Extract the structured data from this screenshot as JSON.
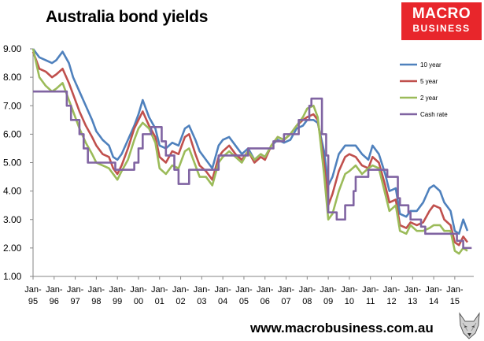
{
  "header": {
    "title": "Australia bond yields"
  },
  "logo": {
    "line1": "MACRO",
    "line2": "BUSINESS",
    "color": "#e8262b"
  },
  "footer": {
    "url": "www.macrobusiness.com.au",
    "icon": "wolf-icon"
  },
  "chart_data": {
    "type": "line",
    "title": "Australia bond yields",
    "xlabel": "",
    "ylabel": "",
    "ylim": [
      1.0,
      9.0
    ],
    "xlim": [
      1995.0,
      2015.9
    ],
    "yticks": [
      "1.00",
      "2.00",
      "3.00",
      "4.00",
      "5.00",
      "6.00",
      "7.00",
      "8.00",
      "9.00"
    ],
    "xticks": [
      {
        "top": "Jan-",
        "bottom": "95",
        "x": 1995
      },
      {
        "top": "Jan-",
        "bottom": "96",
        "x": 1996
      },
      {
        "top": "Jan-",
        "bottom": "97",
        "x": 1997
      },
      {
        "top": "Jan-",
        "bottom": "98",
        "x": 1998
      },
      {
        "top": "Jan-",
        "bottom": "99",
        "x": 1999
      },
      {
        "top": "Jan-",
        "bottom": "00",
        "x": 2000
      },
      {
        "top": "Jan-",
        "bottom": "01",
        "x": 2001
      },
      {
        "top": "Jan-",
        "bottom": "02",
        "x": 2002
      },
      {
        "top": "Jan-",
        "bottom": "03",
        "x": 2003
      },
      {
        "top": "Jan-",
        "bottom": "04",
        "x": 2004
      },
      {
        "top": "Jan-",
        "bottom": "05",
        "x": 2005
      },
      {
        "top": "Jan-",
        "bottom": "06",
        "x": 2006
      },
      {
        "top": "Jan-",
        "bottom": "07",
        "x": 2007
      },
      {
        "top": "Jan-",
        "bottom": "08",
        "x": 2008
      },
      {
        "top": "Jan-",
        "bottom": "09",
        "x": 2009
      },
      {
        "top": "Jan-",
        "bottom": "10",
        "x": 2010
      },
      {
        "top": "Jan-",
        "bottom": "11",
        "x": 2011
      },
      {
        "top": "Jan-",
        "bottom": "12",
        "x": 2012
      },
      {
        "top": "Jan-",
        "bottom": "13",
        "x": 2013
      },
      {
        "top": "Jan-",
        "bottom": "14",
        "x": 2014
      },
      {
        "top": "Jan-",
        "bottom": "15",
        "x": 2015
      }
    ],
    "grid": false,
    "legend": "top-right",
    "series": [
      {
        "name": "10 year",
        "color": "#4f81bd",
        "step": false,
        "points": [
          [
            1995.0,
            9.0
          ],
          [
            1995.3,
            8.7
          ],
          [
            1995.6,
            8.6
          ],
          [
            1995.9,
            8.5
          ],
          [
            1996.1,
            8.6
          ],
          [
            1996.4,
            8.9
          ],
          [
            1996.7,
            8.5
          ],
          [
            1996.9,
            8.0
          ],
          [
            1997.2,
            7.5
          ],
          [
            1997.5,
            7.0
          ],
          [
            1997.8,
            6.5
          ],
          [
            1998.0,
            6.1
          ],
          [
            1998.3,
            5.8
          ],
          [
            1998.6,
            5.6
          ],
          [
            1998.8,
            5.2
          ],
          [
            1999.0,
            5.1
          ],
          [
            1999.2,
            5.3
          ],
          [
            1999.5,
            5.8
          ],
          [
            1999.8,
            6.3
          ],
          [
            2000.0,
            6.7
          ],
          [
            2000.2,
            7.2
          ],
          [
            2000.5,
            6.6
          ],
          [
            2000.8,
            6.2
          ],
          [
            2001.0,
            5.6
          ],
          [
            2001.3,
            5.5
          ],
          [
            2001.6,
            5.7
          ],
          [
            2001.9,
            5.6
          ],
          [
            2002.2,
            6.2
          ],
          [
            2002.4,
            6.3
          ],
          [
            2002.7,
            5.8
          ],
          [
            2002.9,
            5.4
          ],
          [
            2003.2,
            5.1
          ],
          [
            2003.5,
            4.8
          ],
          [
            2003.8,
            5.6
          ],
          [
            2004.0,
            5.8
          ],
          [
            2004.3,
            5.9
          ],
          [
            2004.6,
            5.6
          ],
          [
            2004.9,
            5.3
          ],
          [
            2005.2,
            5.5
          ],
          [
            2005.5,
            5.1
          ],
          [
            2005.8,
            5.3
          ],
          [
            2006.0,
            5.2
          ],
          [
            2006.3,
            5.6
          ],
          [
            2006.6,
            5.8
          ],
          [
            2006.9,
            5.7
          ],
          [
            2007.2,
            5.8
          ],
          [
            2007.5,
            6.2
          ],
          [
            2007.8,
            6.3
          ],
          [
            2008.0,
            6.5
          ],
          [
            2008.3,
            6.5
          ],
          [
            2008.5,
            6.4
          ],
          [
            2008.8,
            5.4
          ],
          [
            2009.0,
            4.2
          ],
          [
            2009.2,
            4.5
          ],
          [
            2009.5,
            5.3
          ],
          [
            2009.8,
            5.6
          ],
          [
            2010.0,
            5.6
          ],
          [
            2010.3,
            5.6
          ],
          [
            2010.6,
            5.3
          ],
          [
            2010.9,
            5.1
          ],
          [
            2011.1,
            5.6
          ],
          [
            2011.4,
            5.3
          ],
          [
            2011.7,
            4.6
          ],
          [
            2011.9,
            4.0
          ],
          [
            2012.2,
            4.1
          ],
          [
            2012.4,
            3.2
          ],
          [
            2012.7,
            3.1
          ],
          [
            2012.9,
            3.3
          ],
          [
            2013.2,
            3.3
          ],
          [
            2013.5,
            3.6
          ],
          [
            2013.8,
            4.1
          ],
          [
            2014.0,
            4.2
          ],
          [
            2014.3,
            4.0
          ],
          [
            2014.5,
            3.6
          ],
          [
            2014.8,
            3.3
          ],
          [
            2015.0,
            2.6
          ],
          [
            2015.2,
            2.5
          ],
          [
            2015.4,
            3.0
          ],
          [
            2015.6,
            2.6
          ]
        ]
      },
      {
        "name": "5 year",
        "color": "#c0504d",
        "step": false,
        "points": [
          [
            1995.0,
            8.9
          ],
          [
            1995.3,
            8.3
          ],
          [
            1995.6,
            8.2
          ],
          [
            1995.9,
            8.0
          ],
          [
            1996.1,
            8.1
          ],
          [
            1996.4,
            8.3
          ],
          [
            1996.7,
            7.8
          ],
          [
            1996.9,
            7.4
          ],
          [
            1997.2,
            6.8
          ],
          [
            1997.5,
            6.3
          ],
          [
            1997.8,
            5.9
          ],
          [
            1998.0,
            5.6
          ],
          [
            1998.3,
            5.3
          ],
          [
            1998.6,
            5.2
          ],
          [
            1998.8,
            4.8
          ],
          [
            1999.0,
            4.6
          ],
          [
            1999.2,
            4.9
          ],
          [
            1999.5,
            5.5
          ],
          [
            1999.8,
            6.2
          ],
          [
            2000.0,
            6.5
          ],
          [
            2000.2,
            6.8
          ],
          [
            2000.5,
            6.3
          ],
          [
            2000.8,
            5.9
          ],
          [
            2001.0,
            5.2
          ],
          [
            2001.3,
            5.0
          ],
          [
            2001.6,
            5.4
          ],
          [
            2001.9,
            5.3
          ],
          [
            2002.2,
            5.9
          ],
          [
            2002.4,
            6.0
          ],
          [
            2002.7,
            5.3
          ],
          [
            2002.9,
            4.9
          ],
          [
            2003.2,
            4.7
          ],
          [
            2003.5,
            4.4
          ],
          [
            2003.8,
            5.2
          ],
          [
            2004.0,
            5.4
          ],
          [
            2004.3,
            5.6
          ],
          [
            2004.6,
            5.3
          ],
          [
            2004.9,
            5.1
          ],
          [
            2005.2,
            5.4
          ],
          [
            2005.5,
            5.0
          ],
          [
            2005.8,
            5.2
          ],
          [
            2006.0,
            5.1
          ],
          [
            2006.3,
            5.6
          ],
          [
            2006.6,
            5.9
          ],
          [
            2006.9,
            5.8
          ],
          [
            2007.2,
            6.0
          ],
          [
            2007.5,
            6.3
          ],
          [
            2007.8,
            6.5
          ],
          [
            2008.0,
            6.6
          ],
          [
            2008.3,
            6.7
          ],
          [
            2008.5,
            6.5
          ],
          [
            2008.8,
            5.0
          ],
          [
            2009.0,
            3.5
          ],
          [
            2009.2,
            3.9
          ],
          [
            2009.5,
            4.7
          ],
          [
            2009.8,
            5.2
          ],
          [
            2010.0,
            5.3
          ],
          [
            2010.3,
            5.2
          ],
          [
            2010.6,
            4.9
          ],
          [
            2010.9,
            4.8
          ],
          [
            2011.1,
            5.2
          ],
          [
            2011.4,
            5.0
          ],
          [
            2011.7,
            4.2
          ],
          [
            2011.9,
            3.6
          ],
          [
            2012.2,
            3.7
          ],
          [
            2012.4,
            2.8
          ],
          [
            2012.7,
            2.7
          ],
          [
            2012.9,
            2.9
          ],
          [
            2013.2,
            2.8
          ],
          [
            2013.5,
            2.9
          ],
          [
            2013.8,
            3.3
          ],
          [
            2014.0,
            3.5
          ],
          [
            2014.3,
            3.4
          ],
          [
            2014.5,
            3.0
          ],
          [
            2014.8,
            2.8
          ],
          [
            2015.0,
            2.2
          ],
          [
            2015.2,
            2.1
          ],
          [
            2015.4,
            2.4
          ],
          [
            2015.6,
            2.2
          ]
        ]
      },
      {
        "name": "2 year",
        "color": "#9bbb59",
        "step": false,
        "points": [
          [
            1995.0,
            9.0
          ],
          [
            1995.3,
            8.0
          ],
          [
            1995.6,
            7.7
          ],
          [
            1995.9,
            7.5
          ],
          [
            1996.1,
            7.6
          ],
          [
            1996.4,
            7.8
          ],
          [
            1996.7,
            7.2
          ],
          [
            1996.9,
            6.8
          ],
          [
            1997.2,
            6.2
          ],
          [
            1997.5,
            5.7
          ],
          [
            1997.8,
            5.3
          ],
          [
            1998.0,
            5.0
          ],
          [
            1998.3,
            4.9
          ],
          [
            1998.6,
            4.8
          ],
          [
            1998.8,
            4.6
          ],
          [
            1999.0,
            4.4
          ],
          [
            1999.2,
            4.7
          ],
          [
            1999.5,
            5.1
          ],
          [
            1999.8,
            5.8
          ],
          [
            2000.0,
            6.2
          ],
          [
            2000.2,
            6.4
          ],
          [
            2000.5,
            6.2
          ],
          [
            2000.8,
            5.7
          ],
          [
            2001.0,
            4.8
          ],
          [
            2001.3,
            4.6
          ],
          [
            2001.6,
            4.9
          ],
          [
            2001.9,
            4.8
          ],
          [
            2002.2,
            5.4
          ],
          [
            2002.4,
            5.5
          ],
          [
            2002.7,
            4.9
          ],
          [
            2002.9,
            4.5
          ],
          [
            2003.2,
            4.5
          ],
          [
            2003.5,
            4.2
          ],
          [
            2003.8,
            5.0
          ],
          [
            2004.0,
            5.2
          ],
          [
            2004.3,
            5.4
          ],
          [
            2004.6,
            5.2
          ],
          [
            2004.9,
            5.0
          ],
          [
            2005.2,
            5.4
          ],
          [
            2005.5,
            5.1
          ],
          [
            2005.8,
            5.3
          ],
          [
            2006.0,
            5.2
          ],
          [
            2006.3,
            5.6
          ],
          [
            2006.6,
            5.9
          ],
          [
            2006.9,
            5.8
          ],
          [
            2007.2,
            6.0
          ],
          [
            2007.5,
            6.3
          ],
          [
            2007.8,
            6.6
          ],
          [
            2008.0,
            6.9
          ],
          [
            2008.3,
            7.0
          ],
          [
            2008.5,
            6.6
          ],
          [
            2008.8,
            4.6
          ],
          [
            2009.0,
            3.0
          ],
          [
            2009.2,
            3.2
          ],
          [
            2009.5,
            4.0
          ],
          [
            2009.8,
            4.6
          ],
          [
            2010.0,
            4.7
          ],
          [
            2010.3,
            4.9
          ],
          [
            2010.6,
            4.6
          ],
          [
            2010.9,
            4.8
          ],
          [
            2011.1,
            4.9
          ],
          [
            2011.4,
            4.8
          ],
          [
            2011.7,
            3.9
          ],
          [
            2011.9,
            3.3
          ],
          [
            2012.2,
            3.5
          ],
          [
            2012.4,
            2.6
          ],
          [
            2012.7,
            2.5
          ],
          [
            2012.9,
            2.8
          ],
          [
            2013.2,
            2.6
          ],
          [
            2013.5,
            2.6
          ],
          [
            2013.8,
            2.7
          ],
          [
            2014.0,
            2.8
          ],
          [
            2014.3,
            2.8
          ],
          [
            2014.5,
            2.6
          ],
          [
            2014.8,
            2.6
          ],
          [
            2015.0,
            1.9
          ],
          [
            2015.2,
            1.8
          ],
          [
            2015.4,
            2.0
          ],
          [
            2015.6,
            1.9
          ]
        ]
      },
      {
        "name": "Cash rate",
        "color": "#8064a2",
        "step": true,
        "points": [
          [
            1995.0,
            7.5
          ],
          [
            1996.6,
            7.0
          ],
          [
            1996.8,
            6.5
          ],
          [
            1997.2,
            6.0
          ],
          [
            1997.4,
            5.5
          ],
          [
            1997.6,
            5.0
          ],
          [
            1998.9,
            4.75
          ],
          [
            1999.8,
            5.0
          ],
          [
            2000.0,
            5.5
          ],
          [
            2000.2,
            6.0
          ],
          [
            2000.6,
            6.25
          ],
          [
            2001.1,
            5.75
          ],
          [
            2001.3,
            5.25
          ],
          [
            2001.7,
            4.75
          ],
          [
            2001.9,
            4.25
          ],
          [
            2002.4,
            4.75
          ],
          [
            2003.8,
            5.25
          ],
          [
            2005.2,
            5.5
          ],
          [
            2006.4,
            5.75
          ],
          [
            2006.9,
            6.0
          ],
          [
            2007.6,
            6.5
          ],
          [
            2008.1,
            7.0
          ],
          [
            2008.2,
            7.25
          ],
          [
            2008.7,
            6.0
          ],
          [
            2008.9,
            5.25
          ],
          [
            2009.0,
            3.25
          ],
          [
            2009.4,
            3.0
          ],
          [
            2009.8,
            3.5
          ],
          [
            2010.2,
            4.0
          ],
          [
            2010.3,
            4.5
          ],
          [
            2010.9,
            4.75
          ],
          [
            2011.8,
            4.5
          ],
          [
            2012.3,
            3.75
          ],
          [
            2012.4,
            3.5
          ],
          [
            2012.8,
            3.25
          ],
          [
            2012.9,
            3.0
          ],
          [
            2013.4,
            2.75
          ],
          [
            2013.6,
            2.5
          ],
          [
            2015.1,
            2.25
          ],
          [
            2015.4,
            2.0
          ],
          [
            2015.8,
            2.0
          ]
        ]
      }
    ]
  }
}
